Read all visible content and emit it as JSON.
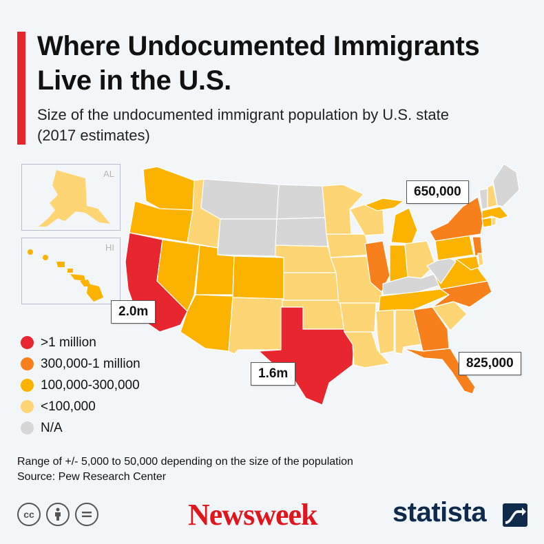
{
  "title": "Where Undocumented Immigrants Live in the U.S.",
  "subtitle": "Size of the undocumented immigrant population by U.S. state (2017 estimates)",
  "colors": {
    "gt_1m": "#e8262f",
    "300k_1m": "#f7801c",
    "100k_300k": "#fbb300",
    "lt_100k": "#fdd574",
    "na": "#d6d6d6",
    "accent": "#e8252f"
  },
  "legend": [
    {
      "label": ">1 million",
      "color": "#e8262f"
    },
    {
      "label": "300,000-1 million",
      "color": "#f7801c"
    },
    {
      "label": "100,000-300,000",
      "color": "#fbb300"
    },
    {
      "label": "<100,000",
      "color": "#fdd574"
    },
    {
      "label": "N/A",
      "color": "#d6d6d6"
    }
  ],
  "insets": {
    "alaska_label": "AL",
    "hawaii_label": "HI"
  },
  "callouts": {
    "california": "2.0m",
    "texas": "1.6m",
    "new_york": "650,000",
    "florida": "825,000"
  },
  "footnote": {
    "range": "Range of +/- 5,000 to 50,000 depending on the size of the population",
    "source": "Source: Pew Research Center"
  },
  "brands": {
    "newsweek": "Newsweek",
    "statista": "statista"
  },
  "cc_icons": [
    "cc-icon",
    "by-icon",
    "nd-icon"
  ]
}
